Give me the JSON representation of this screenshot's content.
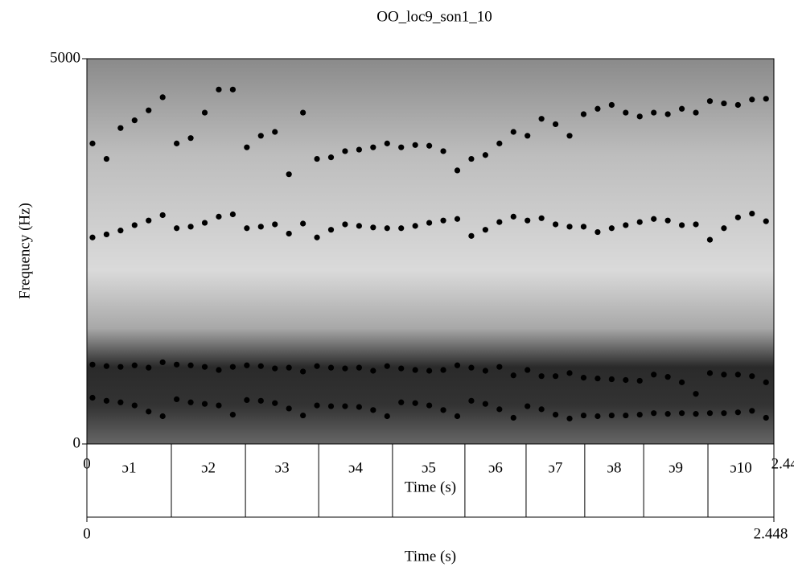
{
  "chart_data": {
    "type": "scatter",
    "title": "OO_loc9_son1_10",
    "ylabel": "Frequency (Hz)",
    "xlabel": "Time (s)",
    "xlim": [
      0,
      2.448
    ],
    "xticks": [
      0,
      2.448
    ],
    "ylim": [
      0,
      5000
    ],
    "yticks": [
      0,
      5000
    ],
    "series": [
      {
        "color": "#000000",
        "x": [
          0.02,
          0.07,
          0.12,
          0.17,
          0.22,
          0.27,
          0.32,
          0.37,
          0.42,
          0.47,
          0.52,
          0.57,
          0.62,
          0.67,
          0.72,
          0.77,
          0.82,
          0.87,
          0.92,
          0.97,
          1.02,
          1.07,
          1.12,
          1.17,
          1.22,
          1.27,
          1.32,
          1.37,
          1.42,
          1.47,
          1.52,
          1.57,
          1.62,
          1.67,
          1.72,
          1.77,
          1.82,
          1.87,
          1.92,
          1.97,
          2.02,
          2.07,
          2.12,
          2.17,
          2.22,
          2.27,
          2.32,
          2.37,
          2.42
        ],
        "values": [
          600,
          560,
          540,
          500,
          420,
          360,
          580,
          540,
          520,
          500,
          380,
          570,
          560,
          530,
          460,
          370,
          500,
          490,
          490,
          480,
          440,
          360,
          540,
          530,
          500,
          440,
          360,
          560,
          520,
          450,
          340,
          490,
          450,
          380,
          330,
          370,
          360,
          370,
          370,
          380,
          400,
          390,
          400,
          390,
          400,
          400,
          410,
          430,
          340
        ]
      },
      {
        "color": "#000000",
        "x": [
          0.02,
          0.07,
          0.12,
          0.17,
          0.22,
          0.27,
          0.32,
          0.37,
          0.42,
          0.47,
          0.52,
          0.57,
          0.62,
          0.67,
          0.72,
          0.77,
          0.82,
          0.87,
          0.92,
          0.97,
          1.02,
          1.07,
          1.12,
          1.17,
          1.22,
          1.27,
          1.32,
          1.37,
          1.42,
          1.47,
          1.52,
          1.57,
          1.62,
          1.67,
          1.72,
          1.77,
          1.82,
          1.87,
          1.92,
          1.97,
          2.02,
          2.07,
          2.12,
          2.17,
          2.22,
          2.27,
          2.32,
          2.37,
          2.42
        ],
        "values": [
          1030,
          1010,
          1000,
          1020,
          990,
          1060,
          1030,
          1020,
          1000,
          960,
          1000,
          1020,
          1010,
          980,
          990,
          940,
          1010,
          990,
          980,
          990,
          950,
          1010,
          980,
          960,
          950,
          960,
          1020,
          990,
          950,
          1000,
          890,
          960,
          880,
          880,
          920,
          860,
          850,
          840,
          830,
          820,
          900,
          870,
          800,
          650,
          920,
          900,
          900,
          880,
          800
        ]
      },
      {
        "color": "#000000",
        "x": [
          0.02,
          0.07,
          0.12,
          0.17,
          0.22,
          0.27,
          0.32,
          0.37,
          0.42,
          0.47,
          0.52,
          0.57,
          0.62,
          0.67,
          0.72,
          0.77,
          0.82,
          0.87,
          0.92,
          0.97,
          1.02,
          1.07,
          1.12,
          1.17,
          1.22,
          1.27,
          1.32,
          1.37,
          1.42,
          1.47,
          1.52,
          1.57,
          1.62,
          1.67,
          1.72,
          1.77,
          1.82,
          1.87,
          1.92,
          1.97,
          2.02,
          2.07,
          2.12,
          2.17,
          2.22,
          2.27,
          2.32,
          2.37,
          2.42
        ],
        "values": [
          2680,
          2720,
          2770,
          2840,
          2900,
          2970,
          2800,
          2820,
          2870,
          2950,
          2980,
          2800,
          2820,
          2850,
          2730,
          2860,
          2680,
          2780,
          2850,
          2830,
          2810,
          2800,
          2800,
          2830,
          2870,
          2900,
          2920,
          2700,
          2780,
          2880,
          2950,
          2900,
          2930,
          2850,
          2820,
          2820,
          2750,
          2800,
          2840,
          2880,
          2920,
          2900,
          2840,
          2850,
          2650,
          2800,
          2940,
          2990,
          2890
        ]
      },
      {
        "color": "#000000",
        "x": [
          0.02,
          0.07,
          0.12,
          0.17,
          0.22,
          0.27,
          0.32,
          0.37,
          0.42,
          0.47,
          0.52,
          0.57,
          0.62,
          0.67,
          0.72,
          0.77,
          0.82,
          0.87,
          0.92,
          0.97,
          1.02,
          1.07,
          1.12,
          1.17,
          1.22,
          1.27,
          1.32,
          1.37,
          1.42,
          1.47,
          1.52,
          1.57,
          1.62,
          1.67,
          1.72,
          1.77,
          1.82,
          1.87,
          1.92,
          1.97,
          2.02,
          2.07,
          2.12,
          2.17,
          2.22,
          2.27,
          2.32,
          2.37,
          2.42
        ],
        "values": [
          3900,
          3700,
          4100,
          4200,
          4330,
          4500,
          3900,
          3970,
          4300,
          4600,
          4600,
          3850,
          4000,
          4050,
          3500,
          4300,
          3700,
          3720,
          3800,
          3820,
          3850,
          3900,
          3850,
          3880,
          3870,
          3800,
          3550,
          3700,
          3750,
          3900,
          4050,
          4000,
          4220,
          4150,
          4000,
          4280,
          4350,
          4400,
          4300,
          4250,
          4300,
          4280,
          4350,
          4300,
          4450,
          4420,
          4400,
          4470,
          4480
        ]
      }
    ],
    "textgrid": {
      "boundaries": [
        0.301,
        0.565,
        0.826,
        1.089,
        1.347,
        1.565,
        1.774,
        1.984,
        2.213
      ],
      "labels": [
        "ɔ1",
        "ɔ2",
        "ɔ3",
        "ɔ4",
        "ɔ5",
        "ɔ6",
        "ɔ7",
        "ɔ8",
        "ɔ9",
        "ɔ10"
      ]
    }
  }
}
